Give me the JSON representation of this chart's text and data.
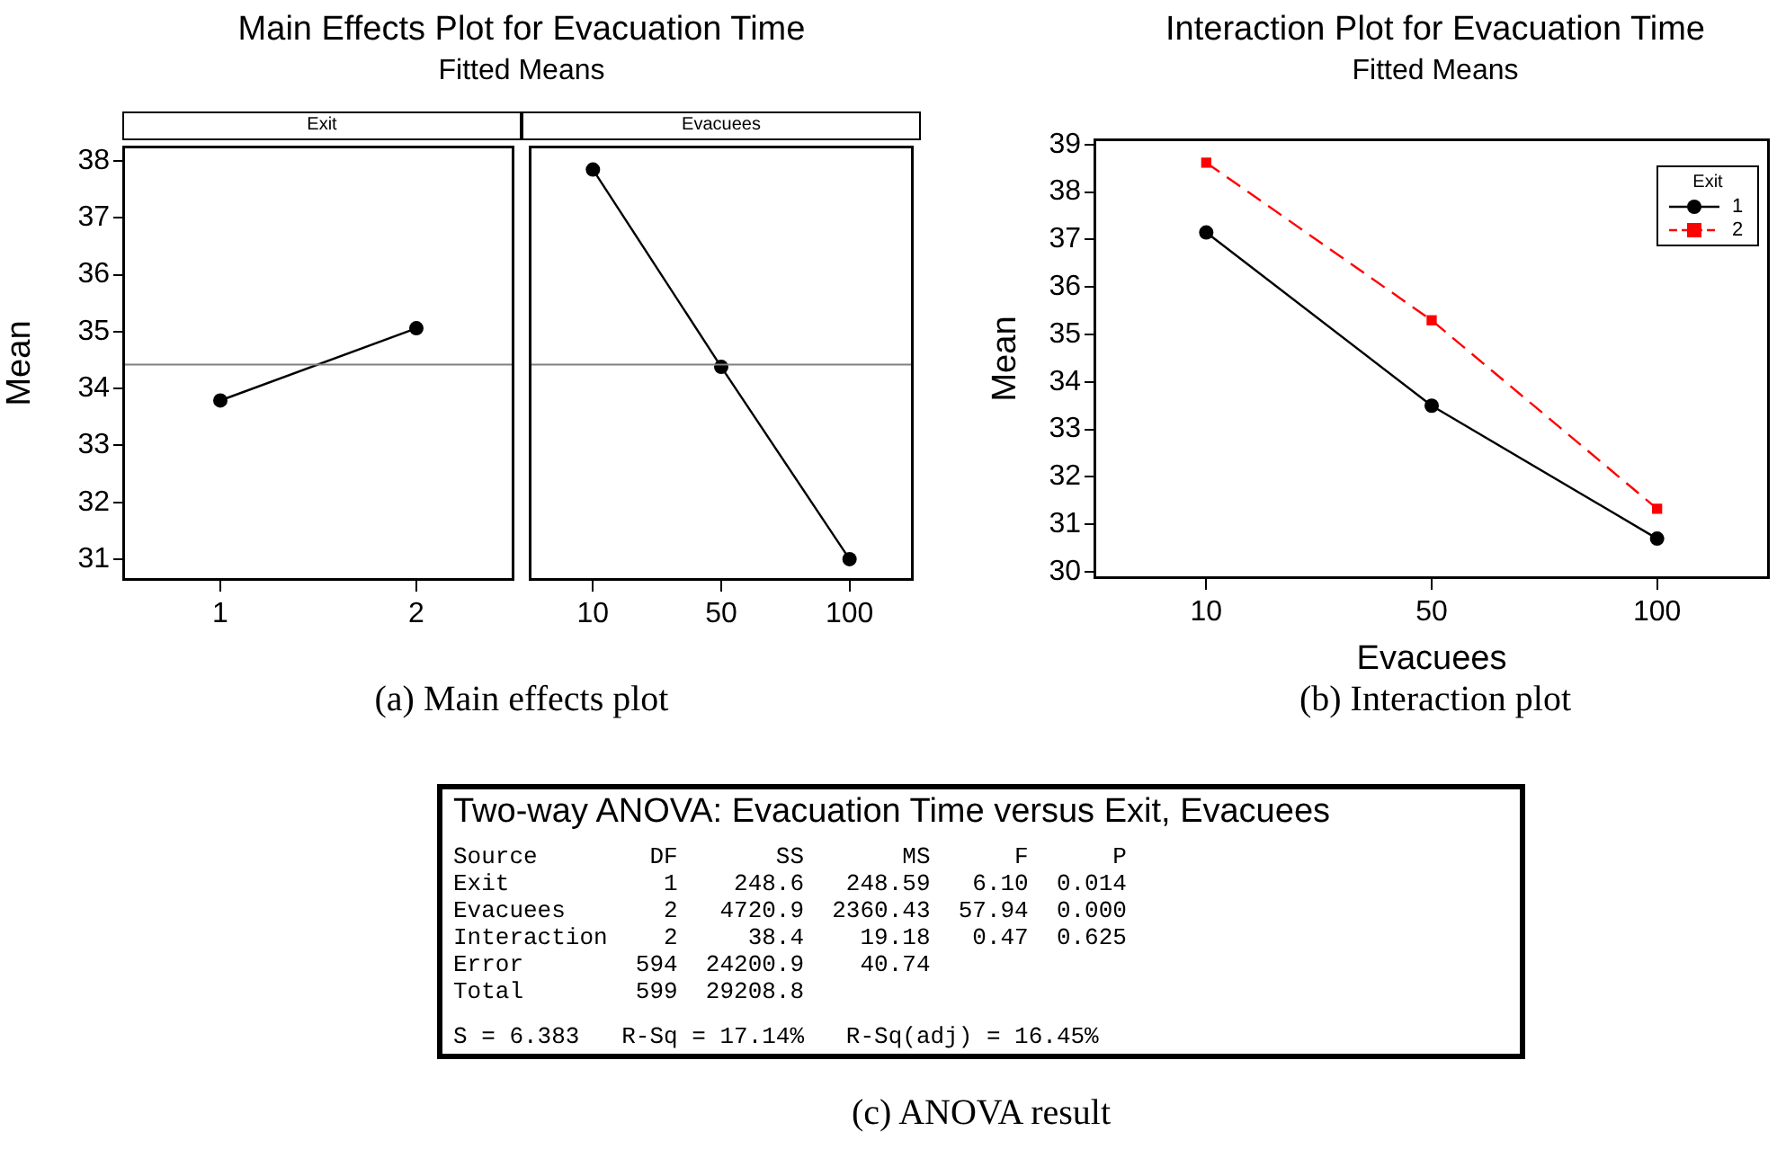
{
  "chart_data": [
    {
      "type": "line",
      "title": "Main Effects Plot for Evacuation Time",
      "subtitle": "Fitted Means",
      "ylabel": "Mean",
      "categories": [
        "1",
        "2"
      ],
      "values": [
        33.79,
        35.06
      ],
      "color": "#000000",
      "marker": "circle",
      "ylim": [
        30.62,
        38.27
      ],
      "yticks": [
        31,
        32,
        33,
        34,
        35,
        36,
        37,
        38
      ],
      "ref_lines": [
        {
          "axis": "y",
          "value": 34.42,
          "color": "#808080"
        }
      ],
      "annotations": [
        "Exit",
        "(a) Main effects plot"
      ]
    },
    {
      "type": "line",
      "categories": [
        "10",
        "50",
        "100"
      ],
      "values": [
        37.85,
        34.38,
        31.0
      ],
      "color": "#000000",
      "marker": "circle",
      "ylim": [
        30.62,
        38.27
      ],
      "yticks": [
        31,
        32,
        33,
        34,
        35,
        36,
        37,
        38
      ],
      "tick_labels": "x",
      "ref_lines": [
        {
          "axis": "y",
          "value": 34.42,
          "color": "#808080"
        }
      ],
      "annotations": [
        "Evacuees"
      ]
    },
    {
      "type": "line",
      "title": "Interaction Plot for Evacuation Time",
      "subtitle": "Fitted Means",
      "xlabel": "Evacuees",
      "ylabel": "Mean",
      "legend_title": "Exit",
      "legend": "top right",
      "categories": [
        "10",
        "50",
        "100"
      ],
      "ylim": [
        29.85,
        39.13
      ],
      "yticks": [
        30,
        31,
        32,
        33,
        34,
        35,
        36,
        37,
        38,
        39
      ],
      "series": [
        {
          "name": "1",
          "color": "#000000",
          "values": [
            37.15,
            33.5,
            30.7
          ],
          "marker": "circle",
          "line_style": "solid"
        },
        {
          "name": "2",
          "color": "#ff0000",
          "values": [
            38.62,
            35.3,
            31.33
          ],
          "marker": "square",
          "line_style": "dashed"
        }
      ],
      "annotations": [
        "(b) Interaction plot"
      ]
    },
    {
      "type": "other",
      "title": "Two-way ANOVA: Evacuation Time versus Exit, Evacuees",
      "annotations": [
        "Source        DF       SS       MS      F      P",
        "Exit           1    248.6   248.59   6.10  0.014",
        "Evacuees       2   4720.9  2360.43  57.94  0.000",
        "Interaction    2     38.4    19.18   0.47  0.625",
        "Error        594  24200.9    40.74",
        "Total        599  29208.8",
        "S = 6.383   R-Sq = 17.14%   R-Sq(adj) = 16.45%",
        "(c) ANOVA result"
      ]
    }
  ]
}
